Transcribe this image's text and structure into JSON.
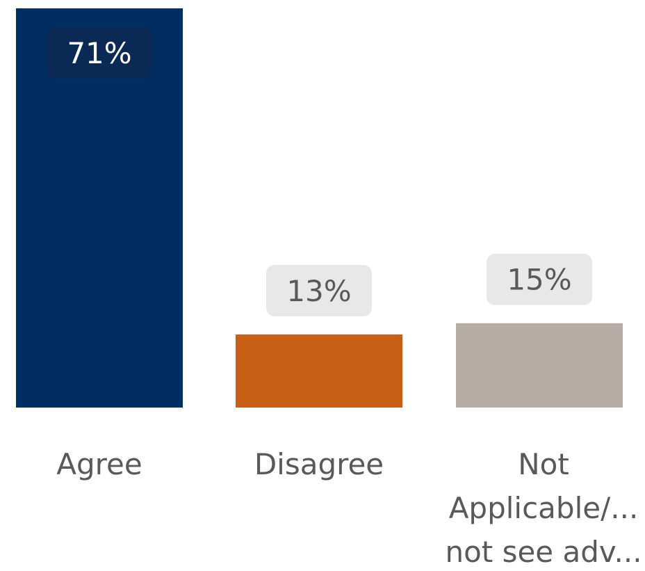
{
  "chart_data": {
    "type": "bar",
    "categories": [
      "Agree",
      "Disagree",
      "Not Applicable/..."
    ],
    "category_label_lines": [
      [
        "Agree"
      ],
      [
        "Disagree"
      ],
      [
        "Not",
        "Applicable/...",
        "not see adv..."
      ]
    ],
    "values": [
      71,
      13,
      15
    ],
    "value_labels": [
      "71%",
      "13%",
      "15%"
    ],
    "value_suffix": "%",
    "ylim": [
      0,
      71
    ],
    "grid": false,
    "legend": "none",
    "xlabel": "",
    "ylabel": "",
    "bar_colors": [
      "#002D62",
      "#C95F14",
      "#B5ADA5"
    ],
    "label_box_colors": [
      "#0A2A55",
      "#E8E8E8",
      "#E8E8E8"
    ],
    "label_text_colors": [
      "#FFFFFF",
      "#595959",
      "#595959"
    ]
  }
}
